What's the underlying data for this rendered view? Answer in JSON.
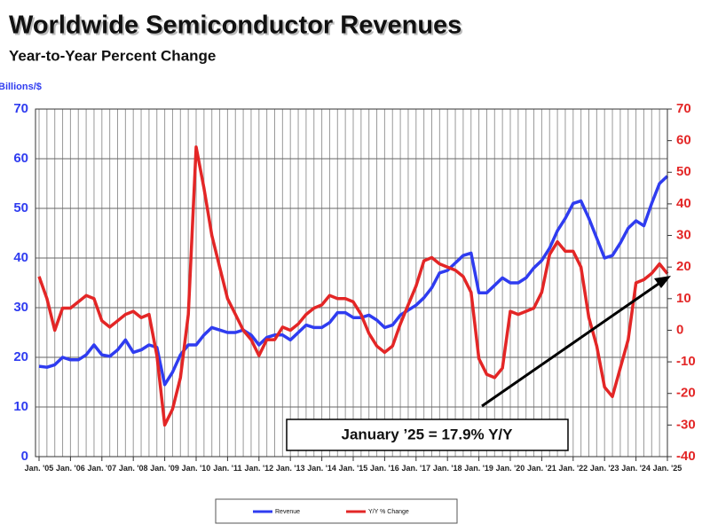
{
  "chart_data": {
    "type": "line",
    "title": "Worldwide Semiconductor Revenues",
    "subtitle": "Year-to-Year Percent Change",
    "y_label": "Billions/$",
    "annotation": "January ’25 = 17.9% Y/Y",
    "x": [
      "2005-01",
      "2005-04",
      "2005-07",
      "2005-10",
      "2006-01",
      "2006-04",
      "2006-07",
      "2006-10",
      "2007-01",
      "2007-04",
      "2007-07",
      "2007-10",
      "2008-01",
      "2008-04",
      "2008-07",
      "2008-10",
      "2009-01",
      "2009-04",
      "2009-07",
      "2009-10",
      "2010-01",
      "2010-04",
      "2010-07",
      "2010-10",
      "2011-01",
      "2011-04",
      "2011-07",
      "2011-10",
      "2012-01",
      "2012-04",
      "2012-07",
      "2012-10",
      "2013-01",
      "2013-04",
      "2013-07",
      "2013-10",
      "2014-01",
      "2014-04",
      "2014-07",
      "2014-10",
      "2015-01",
      "2015-04",
      "2015-07",
      "2015-10",
      "2016-01",
      "2016-04",
      "2016-07",
      "2016-10",
      "2017-01",
      "2017-04",
      "2017-07",
      "2017-10",
      "2018-01",
      "2018-04",
      "2018-07",
      "2018-10",
      "2019-01",
      "2019-04",
      "2019-07",
      "2019-10",
      "2020-01",
      "2020-04",
      "2020-07",
      "2020-10",
      "2021-01",
      "2021-04",
      "2021-07",
      "2021-10",
      "2022-01",
      "2022-04",
      "2022-07",
      "2022-10",
      "2023-01",
      "2023-04",
      "2023-07",
      "2023-10",
      "2024-01",
      "2024-04",
      "2024-07",
      "2024-10",
      "2025-01"
    ],
    "series": [
      {
        "name": "Revenue",
        "color": "#2f3cf0",
        "axis": "y",
        "values": [
          18.2,
          18,
          18.5,
          20,
          19.5,
          19.5,
          20.5,
          22.5,
          20.5,
          20.2,
          21.5,
          23.5,
          21,
          21.5,
          22.5,
          22,
          14.5,
          17,
          20.5,
          22.5,
          22.5,
          24.5,
          26,
          25.5,
          25,
          25,
          25.5,
          24.5,
          22.5,
          24,
          24.5,
          24.5,
          23.5,
          25,
          26.5,
          26,
          26,
          27,
          29,
          29,
          28,
          28,
          28.5,
          27.5,
          26,
          26.5,
          28.5,
          29.5,
          30.5,
          32,
          34,
          37,
          37.5,
          39,
          40.5,
          41,
          33,
          33,
          34.5,
          36,
          35,
          35,
          36,
          38,
          39.5,
          42,
          45.5,
          48,
          51,
          51.5,
          48,
          44,
          40,
          40.5,
          43,
          46,
          47.5,
          46.5,
          51,
          55,
          56.5
        ]
      },
      {
        "name": "Y/Y % Change",
        "color": "#e32626",
        "axis": "y2",
        "values": [
          17,
          10,
          0,
          7,
          7,
          9,
          11,
          10,
          3,
          1,
          3,
          5,
          6,
          4,
          5,
          -8,
          -30,
          -25,
          -15,
          5,
          58,
          45,
          30,
          20,
          10,
          5,
          0,
          -3,
          -8,
          -3,
          -3,
          1,
          0,
          2,
          5,
          7,
          8,
          11,
          10,
          10,
          9,
          5,
          -1,
          -5,
          -7,
          -5,
          2,
          8,
          14,
          22,
          23,
          21,
          20,
          19,
          17,
          12,
          -9,
          -14,
          -15,
          -12,
          6,
          5,
          6,
          7,
          12,
          24,
          28,
          25,
          25,
          20,
          4,
          -5,
          -18,
          -21,
          -12,
          -3,
          15,
          16,
          18,
          21,
          17.9
        ]
      }
    ],
    "ylim": [
      0,
      70
    ],
    "yticks": [
      0,
      10,
      20,
      30,
      40,
      50,
      60,
      70
    ],
    "y2lim": [
      -40,
      70
    ],
    "y2ticks": [
      -40,
      -30,
      -20,
      -10,
      0,
      10,
      20,
      30,
      40,
      50,
      60,
      70
    ],
    "xticks": [
      {
        "value": "2005-01",
        "label": "Jan. '05"
      },
      {
        "value": "2006-01",
        "label": "Jan. '06"
      },
      {
        "value": "2007-01",
        "label": "Jan. '07"
      },
      {
        "value": "2008-01",
        "label": "Jan. '08"
      },
      {
        "value": "2009-01",
        "label": "Jan. '09"
      },
      {
        "value": "2010-01",
        "label": "Jan. '10"
      },
      {
        "value": "2011-01",
        "label": "Jan. '11"
      },
      {
        "value": "2012-01",
        "label": "Jan. '12"
      },
      {
        "value": "2013-01",
        "label": "Jan. '13"
      },
      {
        "value": "2014-01",
        "label": "Jan. '14"
      },
      {
        "value": "2015-01",
        "label": "Jan. '15"
      },
      {
        "value": "2016-01",
        "label": "Jan. '16"
      },
      {
        "value": "2017-01",
        "label": "Jan. '17"
      },
      {
        "value": "2018-01",
        "label": "Jan. '18"
      },
      {
        "value": "2019-01",
        "label": "Jan. '19"
      },
      {
        "value": "2020-01",
        "label": "Jan. '20"
      },
      {
        "value": "2021-01",
        "label": "Jan. '21"
      },
      {
        "value": "2022-01",
        "label": "Jan. '22"
      },
      {
        "value": "2023-01",
        "label": "Jan. '23"
      },
      {
        "value": "2024-01",
        "label": "Jan. '24"
      },
      {
        "value": "2025-01",
        "label": "Jan. '25"
      }
    ],
    "grid": true
  }
}
